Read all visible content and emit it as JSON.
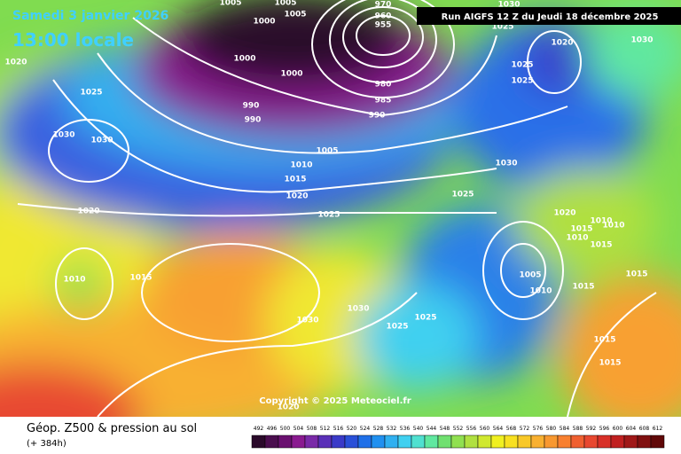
{
  "header": {
    "date": "Samedi 3 janvier 2026",
    "time": "13:00 locale",
    "run": "Run AIGFS 12 Z du Jeudi 18 décembre 2025"
  },
  "copyright": "Copyright © 2025 Meteociel.fr",
  "isobar_labels": [
    "1005",
    "1005",
    "1005",
    "1000",
    "970",
    "960",
    "955",
    "1025",
    "1030",
    "1030",
    "1020",
    "1000",
    "1000",
    "1020",
    "1025",
    "1025",
    "980",
    "985",
    "990",
    "990",
    "990",
    "1025",
    "1030",
    "1030",
    "1005",
    "1030",
    "1010",
    "1015",
    "1020",
    "1025",
    "1025",
    "1020",
    "1020",
    "1010",
    "1010",
    "1015",
    "1010",
    "1015",
    "1010",
    "1015",
    "1005",
    "1010",
    "1015",
    "1015",
    "1030",
    "1030",
    "1025",
    "1025",
    "1015",
    "1015",
    "1020"
  ],
  "legend": {
    "title": "Géop. Z500 & pression au sol",
    "subtitle": "(+ 384h)",
    "values": [
      492,
      496,
      500,
      504,
      508,
      512,
      516,
      520,
      524,
      528,
      532,
      536,
      540,
      544,
      548,
      552,
      556,
      560,
      564,
      568,
      572,
      576,
      580,
      584,
      588,
      592,
      596,
      600,
      604,
      608,
      612
    ],
    "colors": [
      "#2a0a2a",
      "#4a0e4e",
      "#6a1070",
      "#8a1a90",
      "#7a2aa8",
      "#5a30b8",
      "#3a3ac8",
      "#2a50d8",
      "#2070e8",
      "#2090f0",
      "#30b0f0",
      "#40d0f0",
      "#50e0d0",
      "#60e8a0",
      "#70e070",
      "#90e050",
      "#b0e040",
      "#d0e830",
      "#f0f020",
      "#f8e020",
      "#f8c828",
      "#f8b030",
      "#f89830",
      "#f88030",
      "#f06030",
      "#e84830",
      "#d83028",
      "#c02020",
      "#a01818",
      "#801010",
      "#600808"
    ]
  }
}
